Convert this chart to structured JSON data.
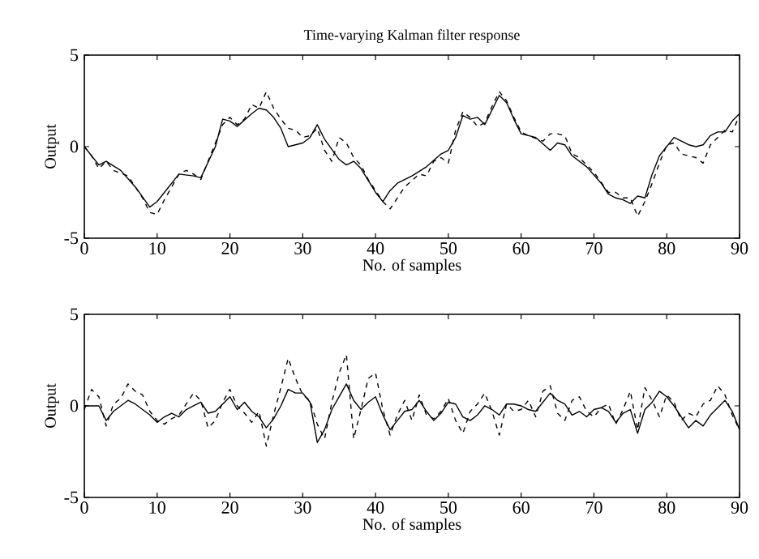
{
  "chart_data": [
    {
      "type": "line",
      "title": "Time-varying Kalman filter response",
      "xlabel": "No. of samples",
      "ylabel": "Output",
      "xlim": [
        0,
        90
      ],
      "ylim": [
        -5,
        5
      ],
      "xticks": [
        0,
        10,
        20,
        30,
        40,
        50,
        60,
        70,
        80,
        90
      ],
      "yticks": [
        -5,
        0,
        5
      ],
      "series": [
        {
          "color": "#000000",
          "line_style": "solid",
          "x": [
            0,
            2,
            3,
            5,
            7,
            9,
            10,
            12,
            13,
            15,
            16,
            18,
            19,
            20,
            21,
            23,
            24,
            25,
            26,
            27,
            28,
            30,
            31,
            32,
            33,
            35,
            36,
            37,
            38,
            40,
            41,
            42,
            43,
            45,
            47,
            49,
            50,
            51,
            52,
            53,
            54,
            55,
            57,
            58,
            59,
            60,
            62,
            64,
            65,
            66,
            67,
            69,
            71,
            72,
            73,
            74,
            75,
            76,
            77,
            78,
            79,
            80,
            81,
            82,
            83,
            84,
            85,
            86,
            87,
            88,
            89,
            90
          ],
          "values": [
            0,
            -1.0,
            -0.8,
            -1.3,
            -2.2,
            -3.3,
            -3.0,
            -2.0,
            -1.5,
            -1.6,
            -1.7,
            0,
            1.5,
            1.4,
            1.1,
            1.8,
            2.1,
            2.0,
            1.6,
            1.0,
            0,
            0.2,
            0.5,
            1.2,
            0.4,
            -0.7,
            -1.0,
            -0.8,
            -1.2,
            -2.5,
            -3.0,
            -2.4,
            -2.0,
            -1.6,
            -1.1,
            -0.4,
            -0.2,
            0.5,
            1.7,
            1.5,
            1.6,
            1.2,
            2.8,
            2.4,
            1.5,
            0.7,
            0.5,
            -0.2,
            0.2,
            0.1,
            -0.5,
            -1.1,
            -2.0,
            -2.6,
            -2.8,
            -2.9,
            -3.1,
            -2.7,
            -2.8,
            -1.5,
            -0.5,
            0,
            0.5,
            0.3,
            0.1,
            0.0,
            0.1,
            0.6,
            0.8,
            0.8,
            1.4,
            1.8
          ]
        },
        {
          "color": "#000000",
          "line_style": "dashed",
          "x": [
            0,
            1,
            2,
            3,
            4,
            6,
            8,
            9,
            10,
            11,
            12,
            13,
            14,
            15,
            16,
            17,
            19,
            20,
            21,
            22,
            23,
            24,
            25,
            26,
            27,
            28,
            29,
            30,
            31,
            32,
            33,
            34,
            35,
            36,
            37,
            38,
            39,
            40,
            41,
            42,
            43,
            44,
            46,
            47,
            48,
            49,
            50,
            51,
            52,
            53,
            54,
            55,
            56,
            57,
            58,
            59,
            60,
            61,
            63,
            64,
            65,
            66,
            67,
            68,
            70,
            72,
            73,
            74,
            75,
            76,
            77,
            78,
            79,
            80,
            81,
            82,
            84,
            85,
            86,
            87,
            88,
            89,
            90
          ],
          "values": [
            0,
            -0.5,
            -1.2,
            -0.8,
            -1.3,
            -1.6,
            -2.8,
            -3.6,
            -3.7,
            -2.9,
            -2.2,
            -1.5,
            -1.3,
            -1.5,
            -1.8,
            -0.8,
            1.2,
            1.6,
            1.2,
            1.5,
            2.3,
            2.1,
            3.0,
            2.1,
            1.5,
            1.0,
            0.9,
            0.5,
            0.6,
            1.0,
            -0.2,
            -0.8,
            0.5,
            0.2,
            -0.6,
            -1.0,
            -1.8,
            -2.4,
            -3.0,
            -3.4,
            -2.8,
            -2.2,
            -1.5,
            -1.6,
            -0.8,
            -0.6,
            -0.9,
            0.9,
            1.9,
            1.6,
            1.1,
            1.3,
            2.2,
            3.0,
            2.5,
            1.6,
            0.8,
            0.6,
            0.3,
            0.7,
            0.7,
            0.6,
            -0.4,
            -0.6,
            -1.4,
            -2.5,
            -2.5,
            -2.8,
            -2.8,
            -3.8,
            -3.0,
            -2.0,
            -0.9,
            0.1,
            0.2,
            -0.4,
            -0.6,
            -0.9,
            0.1,
            0.5,
            0.9,
            0.8,
            1.7
          ]
        }
      ]
    },
    {
      "type": "line",
      "xlabel": "No. of samples",
      "ylabel": "Output",
      "xlim": [
        0,
        90
      ],
      "ylim": [
        -5,
        5
      ],
      "xticks": [
        0,
        10,
        20,
        30,
        40,
        50,
        60,
        70,
        80,
        90
      ],
      "yticks": [
        -5,
        0,
        5
      ],
      "x": [
        0,
        1,
        2,
        3,
        4,
        5,
        6,
        7,
        8,
        9,
        10,
        11,
        12,
        13,
        14,
        15,
        16,
        17,
        18,
        19,
        20,
        21,
        22,
        23,
        24,
        25,
        26,
        27,
        28,
        29,
        30,
        31,
        32,
        33,
        34,
        35,
        36,
        37,
        38,
        39,
        40,
        41,
        42,
        43,
        44,
        45,
        46,
        47,
        48,
        49,
        50,
        51,
        52,
        53,
        54,
        55,
        56,
        57,
        58,
        59,
        60,
        61,
        62,
        63,
        64,
        65,
        66,
        67,
        68,
        69,
        70,
        71,
        72,
        73,
        74,
        75,
        76,
        77,
        78,
        79,
        80,
        81,
        82,
        83,
        84,
        85,
        86,
        87,
        88,
        89,
        90
      ],
      "series": [
        {
          "color": "#000000",
          "line_style": "solid",
          "values": [
            0,
            0,
            0,
            -0.8,
            -0.3,
            0,
            0.3,
            0.1,
            -0.2,
            -0.5,
            -0.9,
            -0.6,
            -0.4,
            -0.6,
            -0.2,
            0,
            0.2,
            -0.4,
            -0.3,
            0.1,
            0.5,
            -0.2,
            0.2,
            -0.3,
            -0.6,
            -1.2,
            -0.7,
            0,
            0.9,
            0.7,
            0.7,
            0.2,
            -2.0,
            -1.3,
            -0.2,
            0.5,
            1.2,
            0.3,
            -0.2,
            0.2,
            0.5,
            -0.5,
            -1.3,
            -0.8,
            -0.3,
            -0.2,
            0.3,
            -0.3,
            -0.8,
            -0.4,
            0.2,
            0.1,
            -0.6,
            -0.8,
            -0.5,
            0,
            -0.2,
            -0.5,
            0.1,
            0.1,
            0,
            -0.2,
            -0.3,
            0.2,
            0.7,
            0.3,
            0.1,
            -0.5,
            -0.3,
            -0.6,
            -0.2,
            -0.1,
            -0.3,
            -0.9,
            -0.4,
            -0.2,
            -1.5,
            -0.2,
            0.2,
            0.8,
            0.5,
            0,
            -0.6,
            -1.2,
            -0.8,
            -1.1,
            -0.5,
            -0.1,
            0.3,
            -0.3,
            -1.3
          ]
        },
        {
          "color": "#000000",
          "line_style": "dashed",
          "values": [
            -0.2,
            0.9,
            0.5,
            -1.1,
            0.1,
            0.4,
            1.2,
            0.8,
            0.6,
            -0.3,
            -0.8,
            -1.0,
            -0.7,
            -0.5,
            0.1,
            0.7,
            0.3,
            -1.2,
            -0.8,
            0.2,
            0.9,
            0,
            -0.4,
            -0.9,
            -0.3,
            -2.2,
            -0.5,
            1.0,
            2.6,
            1.5,
            0.6,
            0.3,
            -1.0,
            -1.8,
            0.2,
            1.8,
            2.8,
            -1.8,
            -0.2,
            1.5,
            1.8,
            -0.2,
            -1.6,
            -0.5,
            0.3,
            -0.8,
            0.6,
            -0.5,
            -0.7,
            -0.3,
            0.4,
            -0.8,
            -1.5,
            -0.3,
            0.1,
            0.7,
            -0.3,
            -1.6,
            0.1,
            -0.3,
            -0.2,
            0.3,
            -0.6,
            0.8,
            1.1,
            -0.4,
            -0.8,
            0.3,
            0.5,
            -0.3,
            -0.6,
            -0.1,
            0.1,
            -1.0,
            -0.2,
            0.8,
            -1.3,
            1.0,
            0.3,
            -0.6,
            0.6,
            0.2,
            -0.8,
            -0.4,
            -0.6,
            0.1,
            0.3,
            1.1,
            0.6,
            -0.5,
            -1.3
          ]
        }
      ]
    }
  ]
}
